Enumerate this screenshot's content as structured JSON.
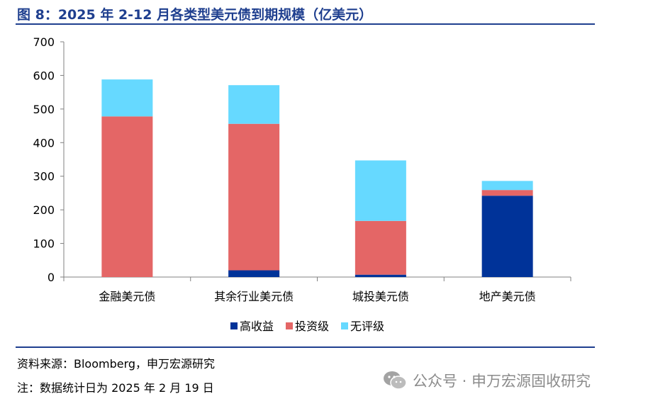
{
  "title": "图 8：2025 年 2-12 月各类型美元债到期规模（亿美元）",
  "source": "资料来源：Bloomberg，申万宏源研究",
  "footnote": "注：数据统计日为 2025 年 2 月 19 日",
  "watermark": "公众号 · 申万宏源固收研究",
  "colors": {
    "high_yield": "#003399",
    "investment_grade": "#e46666",
    "unrated": "#66d9ff",
    "title": "#1f3f8f"
  },
  "chart_data": {
    "type": "bar",
    "stacked": true,
    "title": "图 8：2025 年 2-12 月各类型美元债到期规模（亿美元）",
    "xlabel": "",
    "ylabel": "",
    "ylim": [
      0,
      700
    ],
    "yticks": [
      0,
      100,
      200,
      300,
      400,
      500,
      600,
      700
    ],
    "categories": [
      "金融美元债",
      "其余行业美元债",
      "城投美元债",
      "地产美元债"
    ],
    "series": [
      {
        "name": "高收益",
        "color": "#003399",
        "values": [
          0,
          20,
          7,
          242
        ]
      },
      {
        "name": "投资级",
        "color": "#e46666",
        "values": [
          478,
          436,
          160,
          17
        ]
      },
      {
        "name": "无评级",
        "color": "#66d9ff",
        "values": [
          110,
          115,
          180,
          27
        ]
      }
    ],
    "legend": "bottom-center",
    "grid": false
  }
}
